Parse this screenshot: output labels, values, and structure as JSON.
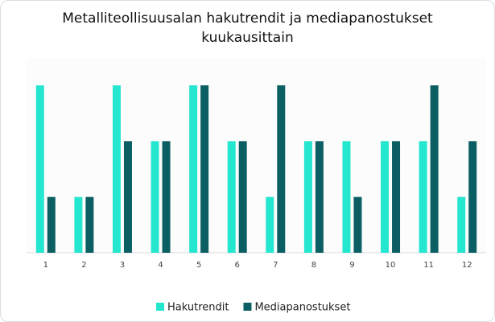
{
  "chart_data": {
    "type": "bar",
    "title": "Metalliteollisuusalan hakutrendit ja mediapanostukset kuukausittain",
    "categories": [
      "1",
      "2",
      "3",
      "4",
      "5",
      "6",
      "7",
      "8",
      "9",
      "10",
      "11",
      "12"
    ],
    "series": [
      {
        "name": "Hakutrendit",
        "color": "#25e6cf",
        "values": [
          3,
          1,
          3,
          2,
          3,
          2,
          1,
          2,
          2,
          2,
          2,
          1
        ]
      },
      {
        "name": "Mediapanostukset",
        "color": "#0b5f63",
        "values": [
          1,
          1,
          2,
          2,
          3,
          2,
          3,
          2,
          1,
          2,
          3,
          2
        ]
      }
    ],
    "legend": "bottom"
  }
}
